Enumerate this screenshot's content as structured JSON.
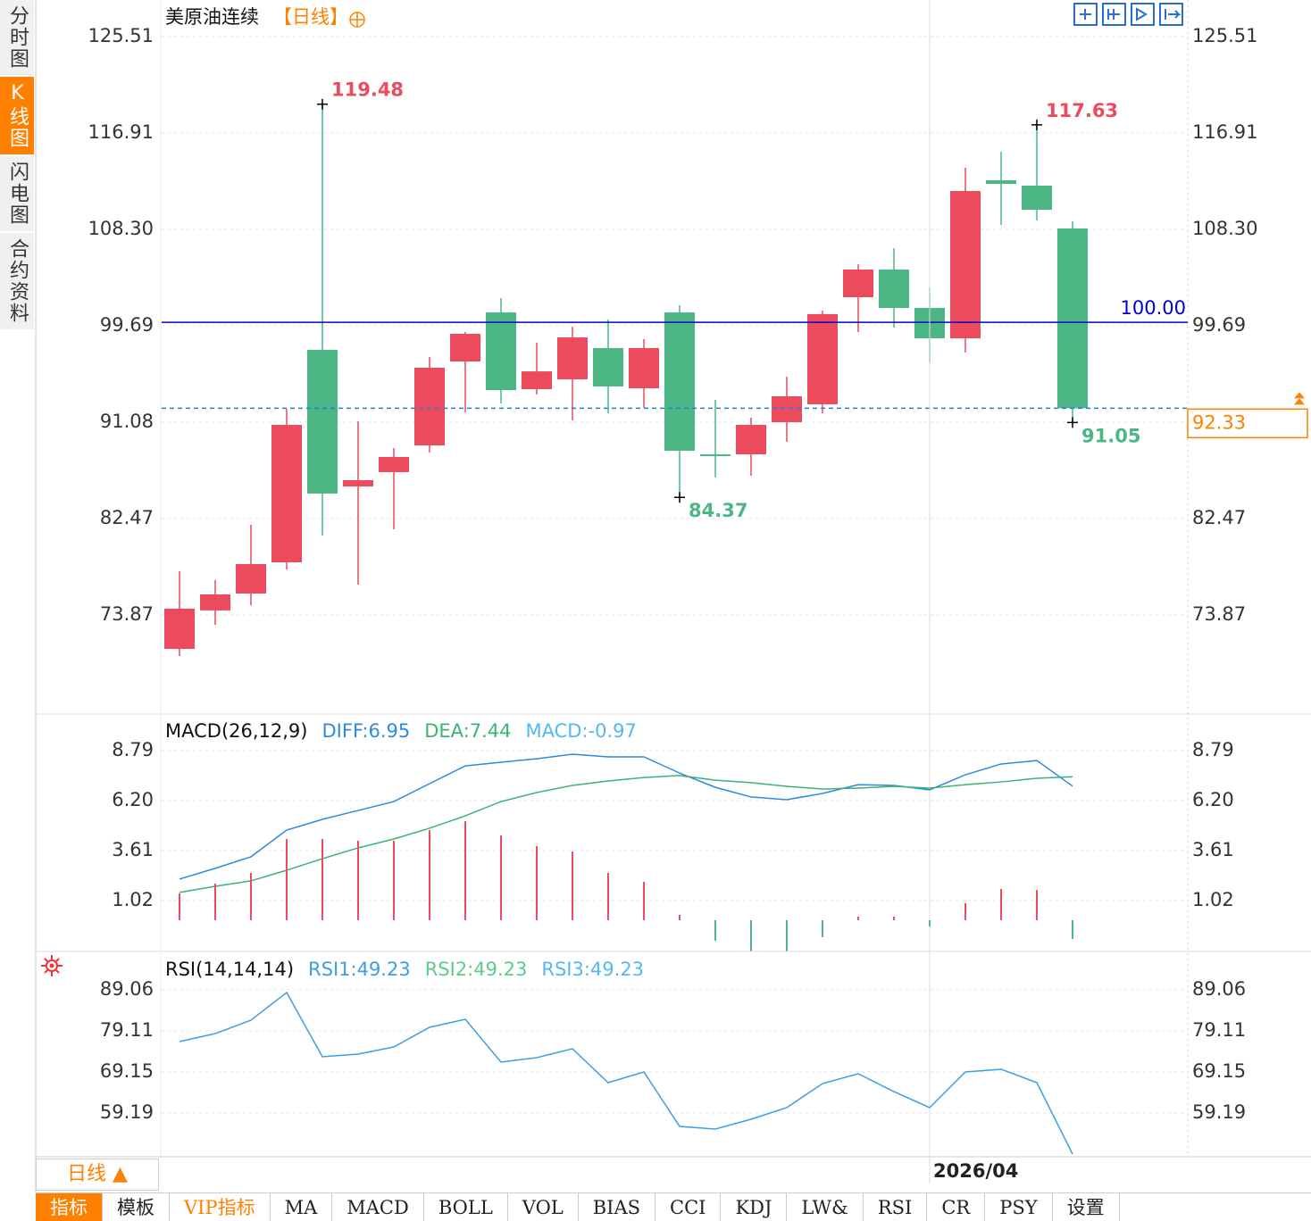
{
  "sidebar_tabs": [
    "分时图",
    "K线图",
    "闪电图",
    "合约资料"
  ],
  "sidebar_selected": 1,
  "period_button": "日线 ▲",
  "tabs": [
    "指标",
    "模板",
    "VIP指标",
    "MA",
    "MACD",
    "BOLL",
    "VOL",
    "BIAS",
    "CCI",
    "KDJ",
    "LW&",
    "RSI",
    "CR",
    "PSY",
    "设置"
  ],
  "tab_selected": 0,
  "chart_data": [
    {
      "type": "candlestick",
      "title": "美原油连续",
      "period": "【日线】",
      "categories": [
        null,
        null,
        null,
        null,
        null,
        null,
        null,
        null,
        null,
        null,
        null,
        null,
        null,
        null,
        null,
        null,
        null,
        null,
        null,
        null,
        null,
        "2026/04",
        null,
        null,
        null,
        null
      ],
      "open": [
        70.84,
        74.27,
        75.78,
        78.57,
        97.54,
        85.34,
        86.62,
        89.01,
        96.5,
        100.88,
        94.03,
        94.91,
        97.7,
        94.11,
        100.88,
        88.21,
        88.21,
        91.08,
        92.68,
        102.24,
        104.71,
        101.28,
        98.57,
        112.68,
        112.2,
        108.38
      ],
      "high": [
        77.77,
        76.98,
        81.92,
        92.28,
        119.48,
        91.16,
        88.77,
        96.9,
        99.13,
        102.16,
        98.17,
        99.61,
        100.25,
        98.49,
        101.52,
        93.07,
        91.48,
        95.15,
        101.04,
        105.19,
        106.62,
        103.12,
        113.8,
        115.23,
        117.63,
        109.01
      ],
      "low": [
        70.2,
        72.99,
        74.74,
        77.93,
        80.96,
        76.58,
        81.52,
        88.37,
        91.96,
        92.76,
        93.55,
        91.24,
        91.88,
        92.36,
        84.37,
        86.14,
        86.3,
        89.33,
        91.88,
        99.13,
        99.53,
        96.34,
        97.3,
        108.69,
        109.09,
        91.05
      ],
      "close": [
        74.43,
        75.7,
        78.41,
        90.84,
        84.71,
        85.9,
        87.97,
        95.94,
        98.97,
        93.95,
        95.62,
        98.65,
        94.27,
        97.7,
        88.53,
        88.05,
        90.84,
        93.39,
        100.73,
        104.71,
        101.28,
        98.57,
        111.72,
        112.36,
        110.05,
        92.33
      ],
      "up_color": "#eb4b5c",
      "down_color": "#4cb784",
      "annotations": [
        {
          "index": 4,
          "at": "high"
        },
        {
          "index": 24,
          "at": "high"
        },
        {
          "index": 14,
          "at": "low"
        },
        {
          "index": 25,
          "at": "low"
        }
      ],
      "ylim": [
        65.02,
        128.78
      ],
      "yticks": [
        73.87,
        82.47,
        91.08,
        99.69,
        {
          "value": 108.3,
          "label": "108.30"
        },
        116.91,
        125.51
      ],
      "grid": true,
      "reference_line": {
        "value": 100,
        "label": "100.00",
        "color": "#0000cc"
      },
      "price_line": {
        "value": 92.33,
        "color": "#1e7fe0",
        "label_color": "#ff8000"
      }
    },
    {
      "type": "macd",
      "title": "MACD(26,12,9)",
      "series": [
        {
          "name": "DIFF:6.95",
          "color": "#2d8ae0",
          "values": [
            2.13,
            2.69,
            3.29,
            4.67,
            5.23,
            5.69,
            6.15,
            7.08,
            8.0,
            8.19,
            8.37,
            8.61,
            8.47,
            8.47,
            7.63,
            6.89,
            6.39,
            6.25,
            6.57,
            7.03,
            6.99,
            6.76,
            7.54,
            8.1,
            8.28,
            6.95
          ]
        },
        {
          "name": "DEA:7.44",
          "color": "#3cb371",
          "values": [
            1.44,
            1.76,
            2.04,
            2.59,
            3.19,
            3.75,
            4.21,
            4.77,
            5.41,
            6.15,
            6.62,
            6.99,
            7.22,
            7.4,
            7.5,
            7.26,
            7.13,
            6.94,
            6.8,
            6.85,
            6.94,
            6.85,
            7.03,
            7.17,
            7.36,
            7.44
          ]
        },
        {
          "name": "MACD:-0.97",
          "color": "#55b8f0",
          "type": "bar",
          "up_color": "#eb4b5c",
          "down_color": "#4cb784",
          "values": [
            1.39,
            1.9,
            2.45,
            4.21,
            4.21,
            4.12,
            4.12,
            4.67,
            5.13,
            4.39,
            3.84,
            3.56,
            2.45,
            1.99,
            0.28,
            -1.06,
            -1.6,
            -1.6,
            -0.88,
            0.19,
            0.19,
            -0.32,
            0.88,
            1.62,
            1.57,
            -0.97
          ]
        }
      ],
      "ylim": [
        -1.62,
        10.69
      ],
      "yticks": [
        1.02,
        {
          "value": 3.61,
          "label": "3.61"
        },
        {
          "value": 6.2,
          "label": "6.20"
        },
        8.79
      ]
    },
    {
      "type": "line",
      "title": "RSI(14,14,14)",
      "series": [
        {
          "name": "RSI1:49.23",
          "color": "#3aa0e0",
          "values": [
            76.51,
            78.45,
            81.7,
            88.41,
            72.83,
            73.48,
            75.21,
            79.97,
            81.92,
            71.53,
            72.61,
            74.77,
            66.55,
            69.15,
            55.94,
            55.29,
            57.67,
            60.49,
            66.33,
            68.71,
            64.38,
            60.49,
            69.15,
            69.8,
            66.55,
            49.23
          ]
        },
        {
          "name": "RSI2:49.23",
          "color": "#5ccc8c"
        },
        {
          "name": "RSI3:49.23",
          "color": "#55b8f0"
        }
      ],
      "ylim": [
        48.58,
        98.37
      ],
      "yticks": [
        59.19,
        69.15,
        79.11,
        89.06
      ]
    }
  ]
}
